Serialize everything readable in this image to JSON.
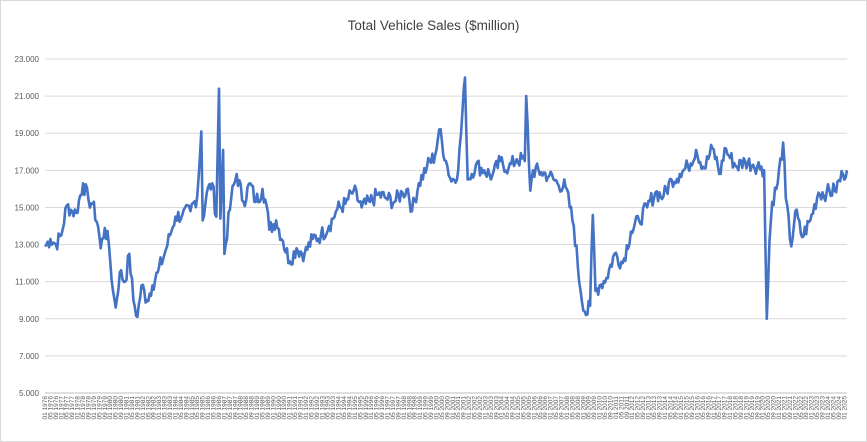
{
  "chart_data": {
    "type": "line",
    "title": "Total Vehicle Sales ($million)",
    "xlabel": "",
    "ylabel": "",
    "ylim": [
      5,
      23
    ],
    "yticks": [
      "5.000",
      "7.000",
      "9.000",
      "11.000",
      "13.000",
      "15.000",
      "17.000",
      "19.000",
      "21.000",
      "23.000"
    ],
    "ytick_values": [
      5,
      7,
      9,
      11,
      13,
      15,
      17,
      19,
      21,
      23
    ],
    "grid": true,
    "legend": "none",
    "series": [
      {
        "name": "Total Vehicle Sales",
        "color": "#4472c4",
        "anchors": [
          [
            "1976-01",
            12.9
          ],
          [
            "1976-05",
            13.3
          ],
          [
            "1976-09",
            13.0
          ],
          [
            "1977-01",
            13.5
          ],
          [
            "1977-05",
            15.1
          ],
          [
            "1977-09",
            14.8
          ],
          [
            "1977-12",
            14.7
          ],
          [
            "1978-05",
            16.3
          ],
          [
            "1978-09",
            15.4
          ],
          [
            "1978-12",
            15.2
          ],
          [
            "1979-04",
            14.0
          ],
          [
            "1979-06",
            12.8
          ],
          [
            "1979-09",
            13.9
          ],
          [
            "1979-12",
            13.0
          ],
          [
            "1980-03",
            10.5
          ],
          [
            "1980-05",
            9.6
          ],
          [
            "1980-08",
            11.5
          ],
          [
            "1980-12",
            11.0
          ],
          [
            "1981-03",
            12.5
          ],
          [
            "1981-06",
            10.0
          ],
          [
            "1981-09",
            9.1
          ],
          [
            "1981-12",
            10.8
          ],
          [
            "1982-04",
            10.0
          ],
          [
            "1982-08",
            10.8
          ],
          [
            "1982-12",
            11.5
          ],
          [
            "1983-05",
            12.5
          ],
          [
            "1983-09",
            13.5
          ],
          [
            "1984-01",
            14.5
          ],
          [
            "1984-06",
            14.6
          ],
          [
            "1984-12",
            14.8
          ],
          [
            "1985-05",
            15.6
          ],
          [
            "1985-08",
            19.1
          ],
          [
            "1985-09",
            14.3
          ],
          [
            "1985-12",
            15.8
          ],
          [
            "1986-04",
            16.3
          ],
          [
            "1986-07",
            14.5
          ],
          [
            "1986-09",
            21.4
          ],
          [
            "1986-10",
            14.4
          ],
          [
            "1986-12",
            18.1
          ],
          [
            "1987-01",
            12.5
          ],
          [
            "1987-06",
            15.5
          ],
          [
            "1987-10",
            16.8
          ],
          [
            "1988-03",
            15.3
          ],
          [
            "1988-08",
            16.3
          ],
          [
            "1988-12",
            15.3
          ],
          [
            "1989-05",
            16.0
          ],
          [
            "1989-08",
            15.1
          ],
          [
            "1989-10",
            13.8
          ],
          [
            "1990-03",
            14.3
          ],
          [
            "1990-08",
            13.2
          ],
          [
            "1991-01",
            12.1
          ],
          [
            "1991-06",
            12.8
          ],
          [
            "1991-12",
            12.5
          ],
          [
            "1992-06",
            13.3
          ],
          [
            "1992-12",
            13.5
          ],
          [
            "1993-06",
            14.0
          ],
          [
            "1993-12",
            14.9
          ],
          [
            "1994-06",
            15.2
          ],
          [
            "1994-12",
            15.9
          ],
          [
            "1995-06",
            15.0
          ],
          [
            "1995-12",
            15.3
          ],
          [
            "1996-06",
            15.7
          ],
          [
            "1996-12",
            15.5
          ],
          [
            "1997-06",
            15.3
          ],
          [
            "1997-12",
            15.8
          ],
          [
            "1998-04",
            16.0
          ],
          [
            "1998-07",
            14.8
          ],
          [
            "1998-12",
            16.3
          ],
          [
            "1999-06",
            17.2
          ],
          [
            "1999-12",
            17.8
          ],
          [
            "2000-03",
            19.2
          ],
          [
            "2000-08",
            17.5
          ],
          [
            "2000-12",
            16.4
          ],
          [
            "2001-05",
            17.0
          ],
          [
            "2001-10",
            22.0
          ],
          [
            "2001-12",
            16.5
          ],
          [
            "2002-06",
            17.3
          ],
          [
            "2002-12",
            17.0
          ],
          [
            "2003-06",
            16.7
          ],
          [
            "2003-12",
            17.5
          ],
          [
            "2004-06",
            17.1
          ],
          [
            "2004-12",
            17.6
          ],
          [
            "2005-06",
            17.5
          ],
          [
            "2005-07",
            21.0
          ],
          [
            "2005-10",
            15.9
          ],
          [
            "2005-12",
            17.0
          ],
          [
            "2006-06",
            16.9
          ],
          [
            "2006-12",
            16.7
          ],
          [
            "2007-06",
            16.3
          ],
          [
            "2007-12",
            16.1
          ],
          [
            "2008-06",
            14.0
          ],
          [
            "2008-11",
            10.5
          ],
          [
            "2009-03",
            9.2
          ],
          [
            "2009-06",
            9.7
          ],
          [
            "2009-08",
            14.6
          ],
          [
            "2009-10",
            10.5
          ],
          [
            "2010-01",
            10.8
          ],
          [
            "2010-06",
            11.2
          ],
          [
            "2010-12",
            12.5
          ],
          [
            "2011-06",
            12.0
          ],
          [
            "2011-12",
            13.7
          ],
          [
            "2012-06",
            14.3
          ],
          [
            "2012-12",
            15.0
          ],
          [
            "2013-06",
            15.8
          ],
          [
            "2013-12",
            15.6
          ],
          [
            "2014-06",
            16.5
          ],
          [
            "2014-12",
            16.8
          ],
          [
            "2015-06",
            17.2
          ],
          [
            "2015-12",
            18.1
          ],
          [
            "2016-06",
            17.1
          ],
          [
            "2016-12",
            18.2
          ],
          [
            "2017-06",
            16.8
          ],
          [
            "2017-09",
            18.2
          ],
          [
            "2017-12",
            17.8
          ],
          [
            "2018-06",
            17.2
          ],
          [
            "2018-12",
            17.5
          ],
          [
            "2019-06",
            17.3
          ],
          [
            "2019-12",
            17.2
          ],
          [
            "2020-02",
            17.0
          ],
          [
            "2020-04",
            9.0
          ],
          [
            "2020-06",
            13.2
          ],
          [
            "2020-08",
            15.3
          ],
          [
            "2020-12",
            16.3
          ],
          [
            "2021-04",
            18.5
          ],
          [
            "2021-06",
            15.5
          ],
          [
            "2021-10",
            12.9
          ],
          [
            "2022-01",
            14.8
          ],
          [
            "2022-06",
            13.4
          ],
          [
            "2022-12",
            14.3
          ],
          [
            "2023-06",
            15.8
          ],
          [
            "2023-12",
            15.8
          ],
          [
            "2024-06",
            15.9
          ],
          [
            "2024-12",
            16.8
          ],
          [
            "2025-03",
            17.0
          ]
        ]
      }
    ],
    "x_tick_labels": [
      "01 1976",
      "05 1976",
      "09 1976",
      "01 1977",
      "05 1977",
      "09 1977",
      "01 1978",
      "05 1978",
      "09 1978",
      "01 1979",
      "05 1979",
      "09 1979",
      "01 1980",
      "05 1980",
      "09 1980",
      "01 1981",
      "05 1981",
      "09 1981",
      "01 1982",
      "05 1982",
      "09 1982",
      "01 1983",
      "05 1983",
      "09 1983",
      "01 1984",
      "05 1984",
      "09 1984",
      "01 1985",
      "05 1985",
      "09 1985",
      "01 1986",
      "05 1986",
      "09 1986",
      "01 1987",
      "05 1987",
      "09 1987",
      "01 1988",
      "05 1988",
      "09 1988",
      "01 1989",
      "05 1989",
      "09 1989",
      "01 1990",
      "05 1990",
      "09 1990",
      "01 1991",
      "05 1991",
      "09 1991",
      "01 1992",
      "05 1992",
      "09 1992",
      "01 1993",
      "05 1993",
      "09 1993",
      "01 1994",
      "05 1994",
      "09 1994",
      "01 1995",
      "05 1995",
      "09 1995",
      "01 1996",
      "05 1996",
      "09 1996",
      "01 1997",
      "05 1997",
      "09 1997",
      "01 1998",
      "05 1998",
      "09 1998",
      "01 1999",
      "05 1999",
      "09 1999",
      "01 2000",
      "05 2000",
      "09 2000",
      "01 2001",
      "05 2001",
      "09 2001",
      "01 2002",
      "05 2002",
      "09 2002",
      "01 2003",
      "05 2003",
      "09 2003",
      "01 2004",
      "05 2004",
      "09 2004",
      "01 2005",
      "05 2005",
      "09 2005",
      "01 2006",
      "05 2006",
      "09 2006",
      "01 2007",
      "05 2007",
      "09 2007",
      "01 2008",
      "05 2008",
      "09 2008",
      "01 2009",
      "05 2009",
      "09 2009",
      "01 2010",
      "05 2010",
      "09 2010",
      "01 2011",
      "05 2011",
      "09 2011",
      "01 2012",
      "05 2012",
      "09 2012",
      "01 2013",
      "05 2013",
      "09 2013",
      "01 2014",
      "05 2014",
      "09 2014",
      "01 2015",
      "05 2015",
      "09 2015",
      "01 2016",
      "05 2016",
      "09 2016",
      "01 2017",
      "05 2017",
      "09 2017",
      "01 2018",
      "05 2018",
      "09 2018",
      "01 2019",
      "05 2019",
      "09 2019",
      "01 2020",
      "05 2020",
      "09 2020",
      "01 2021",
      "05 2021",
      "09 2021",
      "01 2022",
      "05 2022",
      "09 2022",
      "01 2023",
      "05 2023",
      "09 2023",
      "01 2024",
      "05 2024",
      "09 2024",
      "01 2025"
    ]
  }
}
